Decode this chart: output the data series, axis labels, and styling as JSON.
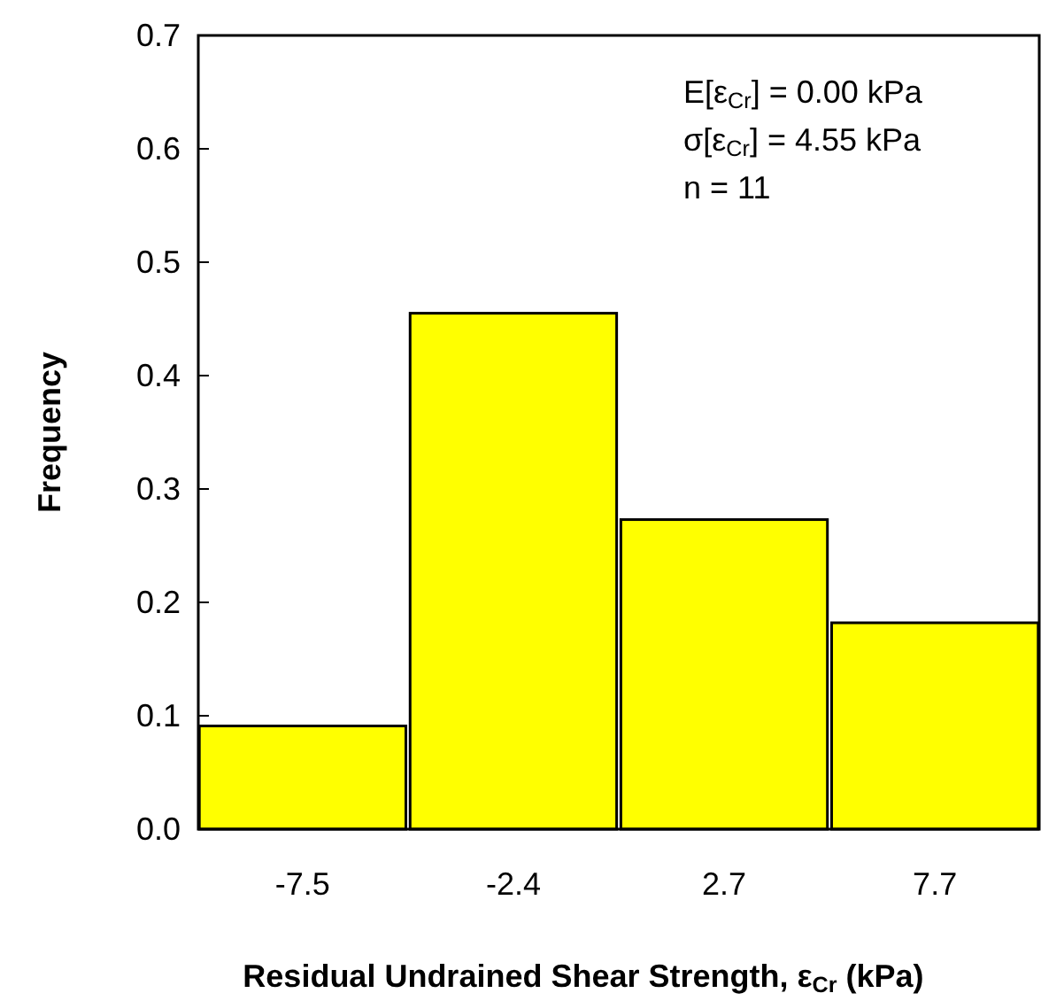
{
  "chart_data": {
    "type": "bar",
    "xlabel": "Residual Undrained Shear Strength, ε$_{Cr}$ (kPa)",
    "ylabel": "Frequency",
    "categories": [
      "-7.5",
      "-2.4",
      "2.7",
      "7.7"
    ],
    "values": [
      0.091,
      0.455,
      0.273,
      0.182
    ],
    "color": "#ffff00",
    "ylim": [
      0,
      0.7
    ],
    "yticks": [
      {
        "value": 0,
        "label": "0.0"
      },
      0.1,
      0.2,
      0.3,
      0.4,
      0.5,
      0.6,
      0.7
    ],
    "grid": false,
    "annotations": [
      "E[ε$_{Cr}$] = 0.00 kPa",
      "σ[ε$_{Cr}$] = 4.55 kPa",
      "n = 11"
    ]
  }
}
